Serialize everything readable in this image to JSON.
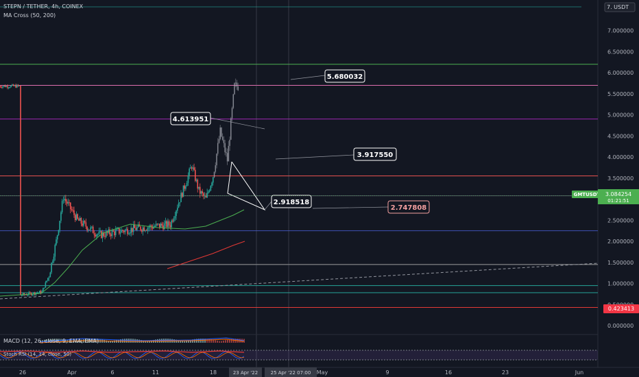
{
  "header": {
    "symbol_line": "STEPN / TETHER, 4h, COINEX",
    "indicator_line": "MA Cross (50, 200)",
    "currency": "7. USDT"
  },
  "indicators": {
    "macd_label": "MACD (12, 26, close, 9, EMA, EMA)",
    "rsi_label": "Stoch RSI (14, 14, close, 50)"
  },
  "price_tag": {
    "ticker": "GMTUSDT",
    "price": "3.084254",
    "countdown": "01:21:51"
  },
  "red_price_tag": "0.423413",
  "callouts": [
    "5.680032",
    "4.613951",
    "3.917550",
    "2.918518",
    "2.747808"
  ],
  "date_cursor": {
    "left": "23 Apr '22",
    "right": "25 Apr '22 07:00"
  },
  "colors": {
    "background": "#131722",
    "bull": "#26a69a",
    "bear": "#ef5350",
    "ma50": "#4caf50",
    "ma200": "#e53935",
    "price_line": "#4caf50",
    "callout_white": "#ffffff",
    "callout_red": "#f4a0a0"
  },
  "chart_data": {
    "type": "candlestick",
    "title": "STEPN / TETHER, 4h, COINEX",
    "ylim": [
      0.0,
      7.0
    ],
    "y_ticks": [
      "7.000000",
      "6.500000",
      "6.000000",
      "5.500000",
      "5.000000",
      "4.500000",
      "4.000000",
      "3.500000",
      "3.000000",
      "2.500000",
      "2.000000",
      "1.500000",
      "1.000000",
      "0.500000",
      "0.000000"
    ],
    "x_ticks": [
      "26",
      "Apr",
      "6",
      "11",
      "18",
      "May",
      "9",
      "16",
      "23",
      "Jun"
    ],
    "approx_close_path": [
      {
        "date": "Mar 26",
        "close": 0.72
      },
      {
        "date": "Mar 29",
        "close": 0.8
      },
      {
        "date": "Mar 30",
        "close": 1.2
      },
      {
        "date": "Mar 31",
        "close": 2.0
      },
      {
        "date": "Apr 1",
        "close": 3.05
      },
      {
        "date": "Apr 3",
        "close": 2.5
      },
      {
        "date": "Apr 6",
        "close": 2.15
      },
      {
        "date": "Apr 11",
        "close": 2.3
      },
      {
        "date": "Apr 16",
        "close": 2.4
      },
      {
        "date": "Apr 18",
        "close": 3.3
      },
      {
        "date": "Apr 19",
        "close": 3.8
      },
      {
        "date": "Apr 20",
        "close": 3.2
      },
      {
        "date": "Apr 21",
        "close": 3.0
      },
      {
        "date": "Apr 22",
        "close": 3.55
      },
      {
        "date": "Apr 23",
        "close": 4.6
      },
      {
        "date": "Apr 24",
        "close": 3.92
      },
      {
        "date": "Apr 25",
        "close": 5.68
      }
    ],
    "horizontal_levels": [
      6.2,
      5.7,
      4.9,
      3.55,
      3.08,
      2.25,
      1.45,
      0.95,
      0.78,
      0.43
    ]
  }
}
